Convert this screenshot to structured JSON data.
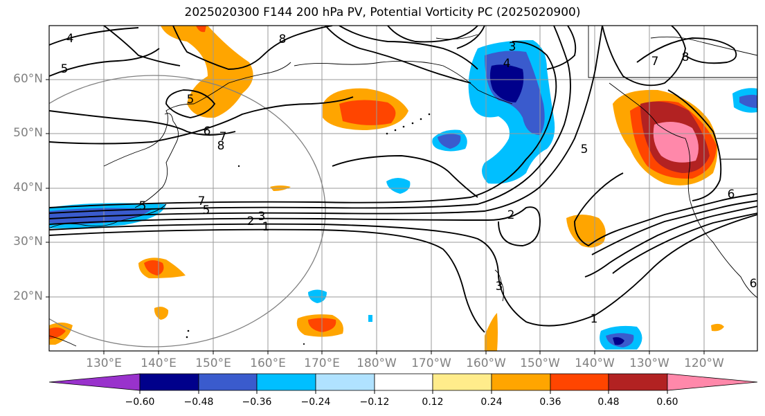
{
  "title": "2025020300 F144 200 hPa PV, Potential Vorticity PC (2025020900)",
  "map": {
    "lat_labels": [
      "60°N",
      "50°N",
      "40°N",
      "30°N",
      "20°N"
    ],
    "lon_labels": [
      "130°E",
      "140°E",
      "150°E",
      "160°E",
      "170°E",
      "180°W",
      "170°W",
      "160°W",
      "150°W",
      "140°W",
      "130°W",
      "120°W"
    ],
    "contour_labels": [
      "4",
      "5",
      "5",
      "6",
      "7",
      "8",
      "8",
      "3",
      "4",
      "5",
      "8",
      "7",
      "6",
      "7",
      "5",
      "3",
      "2",
      "1",
      "2",
      "3",
      "1",
      "6",
      "5",
      "7"
    ]
  },
  "colorbar": {
    "ticks": [
      "−0.60",
      "−0.48",
      "−0.36",
      "−0.24",
      "−0.12",
      "0.12",
      "0.24",
      "0.36",
      "0.48",
      "0.60"
    ],
    "colors": [
      "#9932cc",
      "#00008b",
      "#3a5bcd",
      "#00bfff",
      "#b0e2ff",
      "#ffffff",
      "#ffec8b",
      "#ffa500",
      "#ff4500",
      "#b22222",
      "#ff88aa"
    ]
  }
}
